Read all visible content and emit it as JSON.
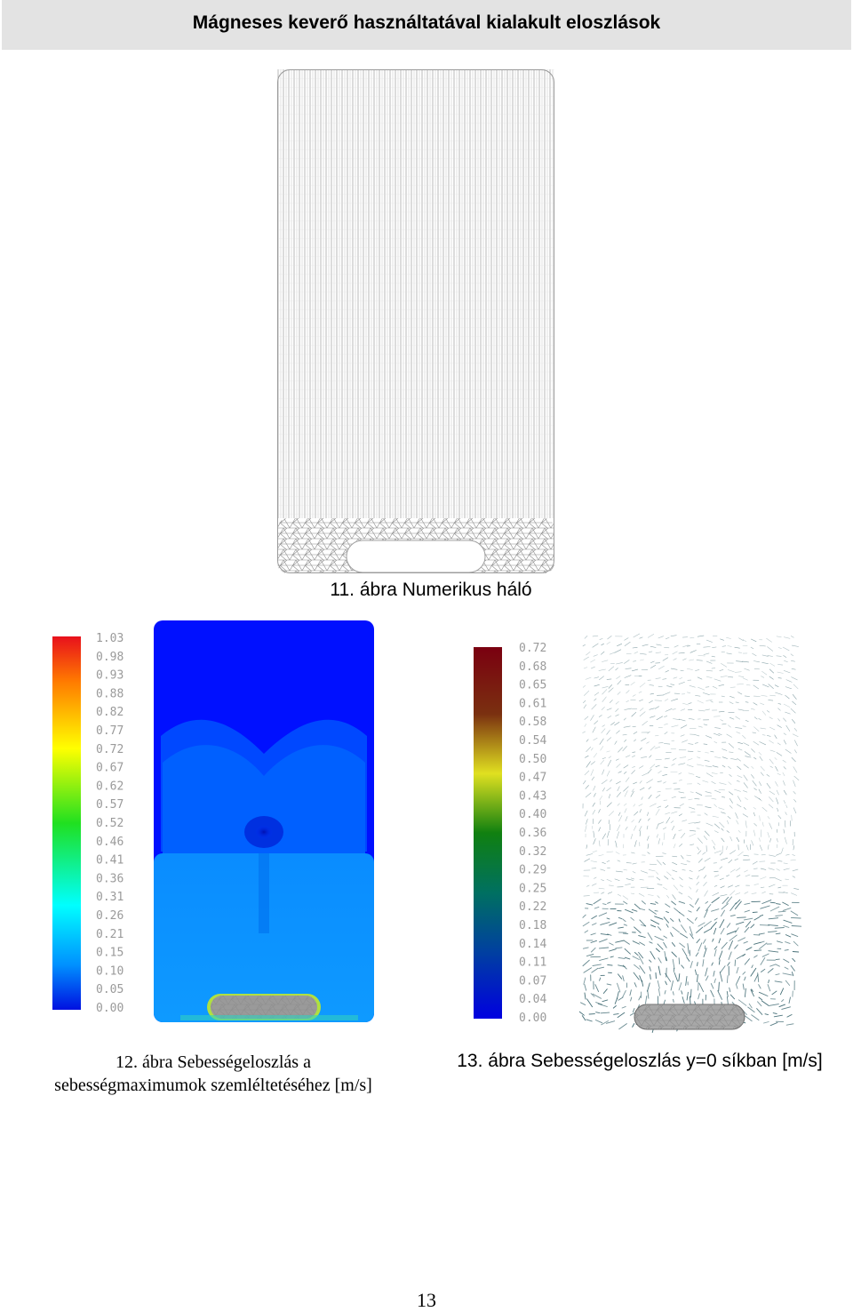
{
  "header": {
    "title": "Mágneses keverő használtatával kialakult eloszlások"
  },
  "figure11": {
    "caption": "11. ábra Numerikus háló"
  },
  "figure12": {
    "caption_line1": "12. ábra Sebességeloszlás a",
    "caption_line2": "sebességmaximumok szemléltetéséhez [m/s]",
    "colorbar_labels": [
      "1.03",
      "0.98",
      "0.93",
      "0.88",
      "0.82",
      "0.77",
      "0.72",
      "0.67",
      "0.62",
      "0.57",
      "0.52",
      "0.46",
      "0.41",
      "0.36",
      "0.31",
      "0.26",
      "0.21",
      "0.15",
      "0.10",
      "0.05",
      "0.00"
    ]
  },
  "figure13": {
    "caption": "13. ábra Sebességeloszlás y=0 síkban [m/s]",
    "colorbar_labels": [
      "0.72",
      "0.68",
      "0.65",
      "0.61",
      "0.58",
      "0.54",
      "0.50",
      "0.47",
      "0.43",
      "0.40",
      "0.36",
      "0.32",
      "0.29",
      "0.25",
      "0.22",
      "0.18",
      "0.14",
      "0.11",
      "0.07",
      "0.04",
      "0.00"
    ]
  },
  "page_number": "13"
}
